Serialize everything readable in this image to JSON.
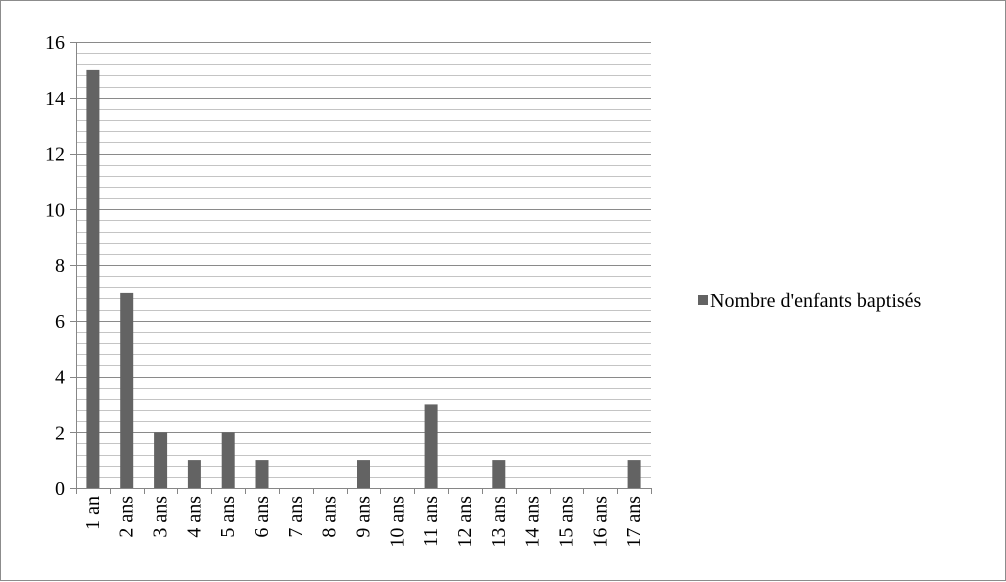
{
  "chart_data": {
    "type": "bar",
    "title": "",
    "xlabel": "",
    "ylabel": "",
    "categories": [
      "1 an",
      "2 ans",
      "3 ans",
      "4 ans",
      "5 ans",
      "6 ans",
      "7 ans",
      "8 ans",
      "9 ans",
      "10 ans",
      "11 ans",
      "12 ans",
      "13 ans",
      "14 ans",
      "15 ans",
      "16 ans",
      "17 ans"
    ],
    "series": [
      {
        "name": "Nombre d'enfants baptisés",
        "values": [
          15,
          7,
          2,
          1,
          2,
          1,
          0,
          0,
          1,
          0,
          3,
          0,
          1,
          0,
          0,
          0,
          1
        ],
        "color": "#636363"
      }
    ],
    "ylim": [
      0,
      16
    ],
    "y_ticks": [
      0,
      2,
      4,
      6,
      8,
      10,
      12,
      14,
      16
    ],
    "minor_grid_step": 0.4,
    "grid": true,
    "legend_position": "right"
  }
}
